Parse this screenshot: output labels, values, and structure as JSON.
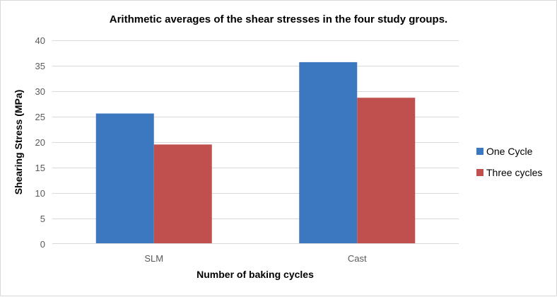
{
  "chart_data": {
    "type": "bar",
    "title": "Arithmetic averages of the shear stresses in the four study groups.",
    "xlabel": "Number of baking cycles",
    "ylabel": "Shearing Stress (MPa)",
    "categories": [
      "SLM",
      "Cast"
    ],
    "series": [
      {
        "name": "One Cycle",
        "values": [
          25.6,
          35.7
        ],
        "color": "#3c78c0"
      },
      {
        "name": "Three cycles",
        "values": [
          19.5,
          28.7
        ],
        "color": "#c0504d"
      }
    ],
    "ylim": [
      0,
      40
    ],
    "yticks": [
      "0",
      "5",
      "10",
      "15",
      "20",
      "25",
      "30",
      "35",
      "40"
    ],
    "grid": true,
    "legend": "right"
  }
}
